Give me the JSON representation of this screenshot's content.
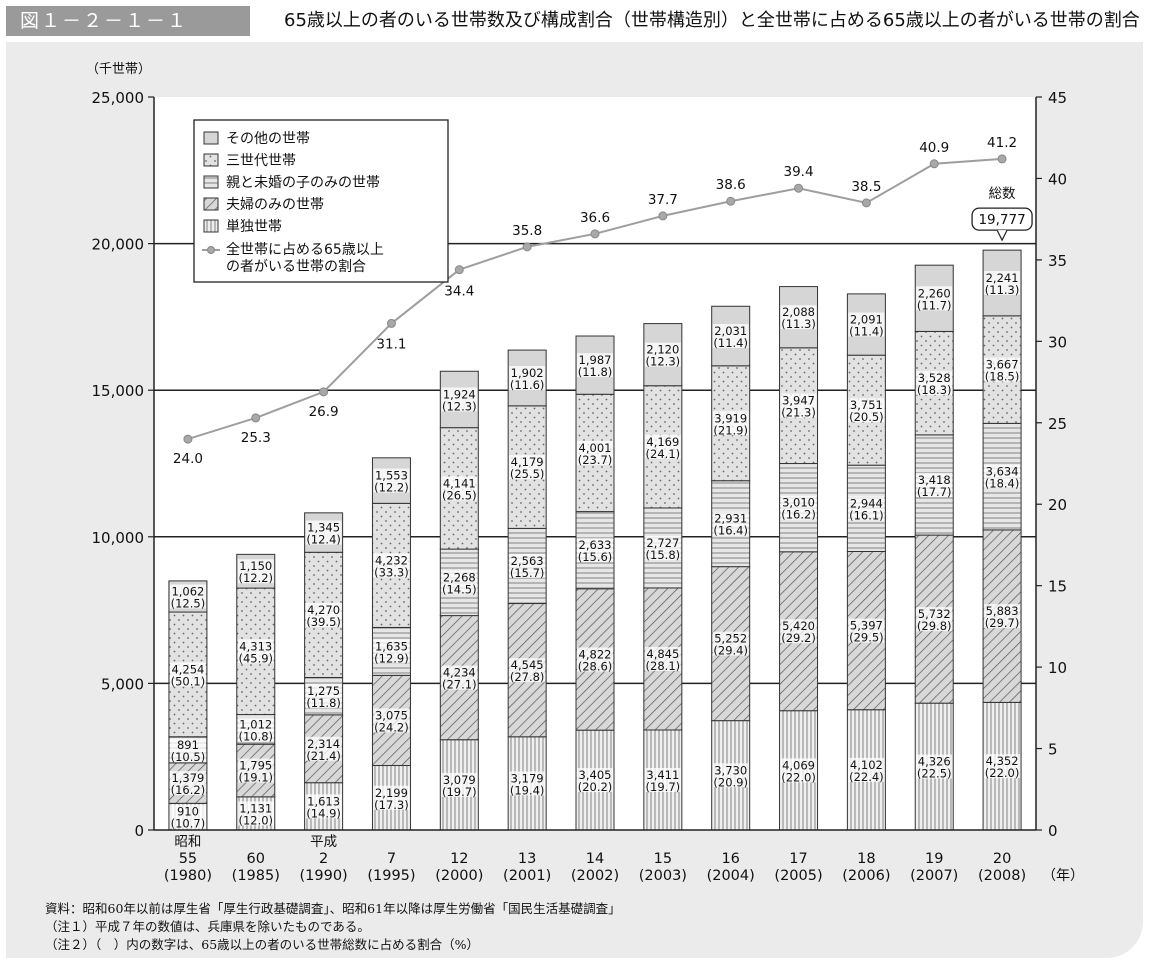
{
  "figure": {
    "label": "図１－２－１－１",
    "title": "65歳以上の者のいる世帯数及び構成割合（世帯構造別）と全世帯に占める65歳以上の者がいる世帯の割合"
  },
  "notes": [
    "資料：昭和60年以前は厚生省「厚生行政基礎調査」、昭和61年以降は厚生労働省「国民生活基礎調査」",
    "（注１）平成７年の数値は、兵庫県を除いたものである。",
    "（注２）（　）内の数字は、65歳以上の者のいる世帯総数に占める割合（%）"
  ],
  "chart_data": {
    "type": "bar",
    "stacked": true,
    "ylabel": "（千世帯）",
    "xunit": "（年）",
    "ylim": [
      0,
      25000
    ],
    "yticks": [
      0,
      5000,
      10000,
      15000,
      20000,
      25000
    ],
    "ytick_labels": [
      "0",
      "5,000",
      "10,000",
      "15,000",
      "20,000",
      "25,000"
    ],
    "y2lim": [
      0,
      45
    ],
    "y2ticks": [
      0,
      5,
      10,
      15,
      20,
      25,
      30,
      35,
      40,
      45
    ],
    "grid": "horizontal at 5,000 / 10,000 / 15,000 / 20,000",
    "legend_position": "top-left",
    "categories": [
      {
        "era": "昭和",
        "year": "55",
        "ad": "(1980)"
      },
      {
        "era": "",
        "year": "60",
        "ad": "(1985)"
      },
      {
        "era": "平成",
        "year": "2",
        "ad": "(1990)"
      },
      {
        "era": "",
        "year": "7",
        "ad": "(1995)"
      },
      {
        "era": "",
        "year": "12",
        "ad": "(2000)"
      },
      {
        "era": "",
        "year": "13",
        "ad": "(2001)"
      },
      {
        "era": "",
        "year": "14",
        "ad": "(2002)"
      },
      {
        "era": "",
        "year": "15",
        "ad": "(2003)"
      },
      {
        "era": "",
        "year": "16",
        "ad": "(2004)"
      },
      {
        "era": "",
        "year": "17",
        "ad": "(2005)"
      },
      {
        "era": "",
        "year": "18",
        "ad": "(2006)"
      },
      {
        "era": "",
        "year": "19",
        "ad": "(2007)"
      },
      {
        "era": "",
        "year": "20",
        "ad": "(2008)"
      }
    ],
    "series": [
      {
        "name": "単独世帯",
        "pattern": "vertical",
        "values": [
          910,
          1131,
          1613,
          2199,
          3079,
          3179,
          3405,
          3411,
          3730,
          4069,
          4102,
          4326,
          4352
        ],
        "labels": [
          "910",
          "1,131",
          "1,613",
          "2,199",
          "3,079",
          "3,179",
          "3,405",
          "3,411",
          "3,730",
          "4,069",
          "4,102",
          "4,326",
          "4,352"
        ],
        "shares": [
          "(10.7)",
          "(12.0)",
          "(14.9)",
          "(17.3)",
          "(19.7)",
          "(19.4)",
          "(20.2)",
          "(19.7)",
          "(20.9)",
          "(22.0)",
          "(22.4)",
          "(22.5)",
          "(22.0)"
        ]
      },
      {
        "name": "夫婦のみの世帯",
        "pattern": "diagonal",
        "values": [
          1379,
          1795,
          2314,
          3075,
          4234,
          4545,
          4822,
          4845,
          5252,
          5420,
          5397,
          5732,
          5883
        ],
        "labels": [
          "1,379",
          "1,795",
          "2,314",
          "3,075",
          "4,234",
          "4,545",
          "4,822",
          "4,845",
          "5,252",
          "5,420",
          "5,397",
          "5,732",
          "5,883"
        ],
        "shares": [
          "(16.2)",
          "(19.1)",
          "(21.4)",
          "(24.2)",
          "(27.1)",
          "(27.8)",
          "(28.6)",
          "(28.1)",
          "(29.4)",
          "(29.2)",
          "(29.5)",
          "(29.8)",
          "(29.7)"
        ]
      },
      {
        "name": "親と未婚の子のみの世帯",
        "pattern": "horizontal",
        "values": [
          891,
          1012,
          1275,
          1635,
          2268,
          2563,
          2633,
          2727,
          2931,
          3010,
          2944,
          3418,
          3634
        ],
        "labels": [
          "891",
          "1,012",
          "1,275",
          "1,635",
          "2,268",
          "2,563",
          "2,633",
          "2,727",
          "2,931",
          "3,010",
          "2,944",
          "3,418",
          "3,634"
        ],
        "shares": [
          "(10.5)",
          "(10.8)",
          "(11.8)",
          "(12.9)",
          "(14.5)",
          "(15.7)",
          "(15.6)",
          "(15.8)",
          "(16.4)",
          "(16.2)",
          "(16.1)",
          "(17.7)",
          "(18.4)"
        ]
      },
      {
        "name": "三世代世帯",
        "pattern": "dots",
        "values": [
          4254,
          4313,
          4270,
          4232,
          4141,
          4179,
          4001,
          4169,
          3919,
          3947,
          3751,
          3528,
          3667
        ],
        "labels": [
          "4,254",
          "4,313",
          "4,270",
          "4,232",
          "4,141",
          "4,179",
          "4,001",
          "4,169",
          "3,919",
          "3,947",
          "3,751",
          "3,528",
          "3,667"
        ],
        "shares": [
          "(50.1)",
          "(45.9)",
          "(39.5)",
          "(33.3)",
          "(26.5)",
          "(25.5)",
          "(23.7)",
          "(24.1)",
          "(21.9)",
          "(21.3)",
          "(20.5)",
          "(18.3)",
          "(18.5)"
        ]
      },
      {
        "name": "その他の世帯",
        "pattern": "solid",
        "values": [
          1062,
          1150,
          1345,
          1553,
          1924,
          1902,
          1987,
          2120,
          2031,
          2088,
          2091,
          2260,
          2241
        ],
        "labels": [
          "1,062",
          "1,150",
          "1,345",
          "1,553",
          "1,924",
          "1,902",
          "1,987",
          "2,120",
          "2,031",
          "2,088",
          "2,091",
          "2,260",
          "2,241"
        ],
        "shares": [
          "(12.5)",
          "(12.2)",
          "(12.4)",
          "(12.2)",
          "(12.3)",
          "(11.6)",
          "(11.8)",
          "(12.3)",
          "(11.4)",
          "(11.3)",
          "(11.4)",
          "(11.7)",
          "(11.3)"
        ]
      }
    ],
    "line_series": {
      "name": "全世帯に占める65歳以上の者がいる世帯の割合",
      "legend_label_lines": [
        "全世帯に占める65歳以上",
        "の者がいる世帯の割合"
      ],
      "axis": "right",
      "values": [
        24.0,
        25.3,
        26.9,
        31.1,
        34.4,
        35.8,
        36.6,
        37.7,
        38.6,
        39.4,
        38.5,
        40.9,
        41.2
      ],
      "labels": [
        "24.0",
        "25.3",
        "26.9",
        "31.1",
        "34.4",
        "35.8",
        "36.6",
        "37.7",
        "38.6",
        "39.4",
        "38.5",
        "40.9",
        "41.2"
      ]
    },
    "total_callout": {
      "caption": "総数",
      "value": "19,777",
      "category_index": 12
    },
    "colors": {
      "panel_bg": "#ebebeb",
      "bar_fill": "#dedede",
      "other_fill": "#d9d9d9",
      "hatch_stroke": "#666666",
      "line": "#9e9e9e",
      "line_marker": "#a8a8a8",
      "axis": "#222222"
    }
  }
}
